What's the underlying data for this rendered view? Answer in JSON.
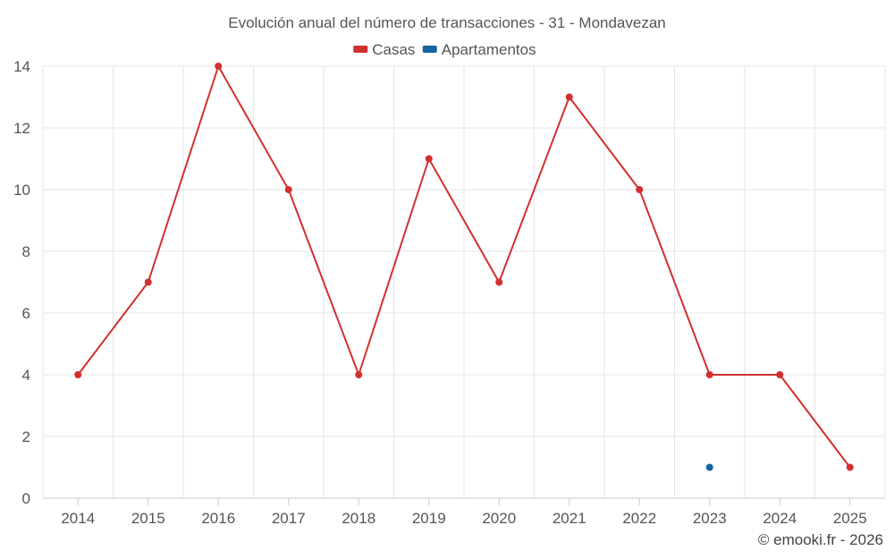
{
  "chart_data": {
    "type": "line",
    "title": "Evolución anual del número de transacciones - 31 - Mondavezan",
    "categories": [
      "2014",
      "2015",
      "2016",
      "2017",
      "2018",
      "2019",
      "2020",
      "2021",
      "2022",
      "2023",
      "2024",
      "2025"
    ],
    "series": [
      {
        "name": "Casas",
        "color": "#d32f2f",
        "values": [
          4,
          7,
          14,
          10,
          4,
          11,
          7,
          13,
          10,
          4,
          4,
          1
        ]
      },
      {
        "name": "Apartamentos",
        "color": "#1565a0",
        "values": [
          null,
          null,
          null,
          null,
          null,
          null,
          null,
          null,
          null,
          1,
          null,
          null
        ]
      }
    ],
    "ylim": [
      0,
      14
    ],
    "yticks": [
      0,
      2,
      4,
      6,
      8,
      10,
      12,
      14
    ],
    "xlabel": "",
    "ylabel": "",
    "grid": true,
    "legend": "top-center"
  },
  "credit": "© emooki.fr - 2026"
}
